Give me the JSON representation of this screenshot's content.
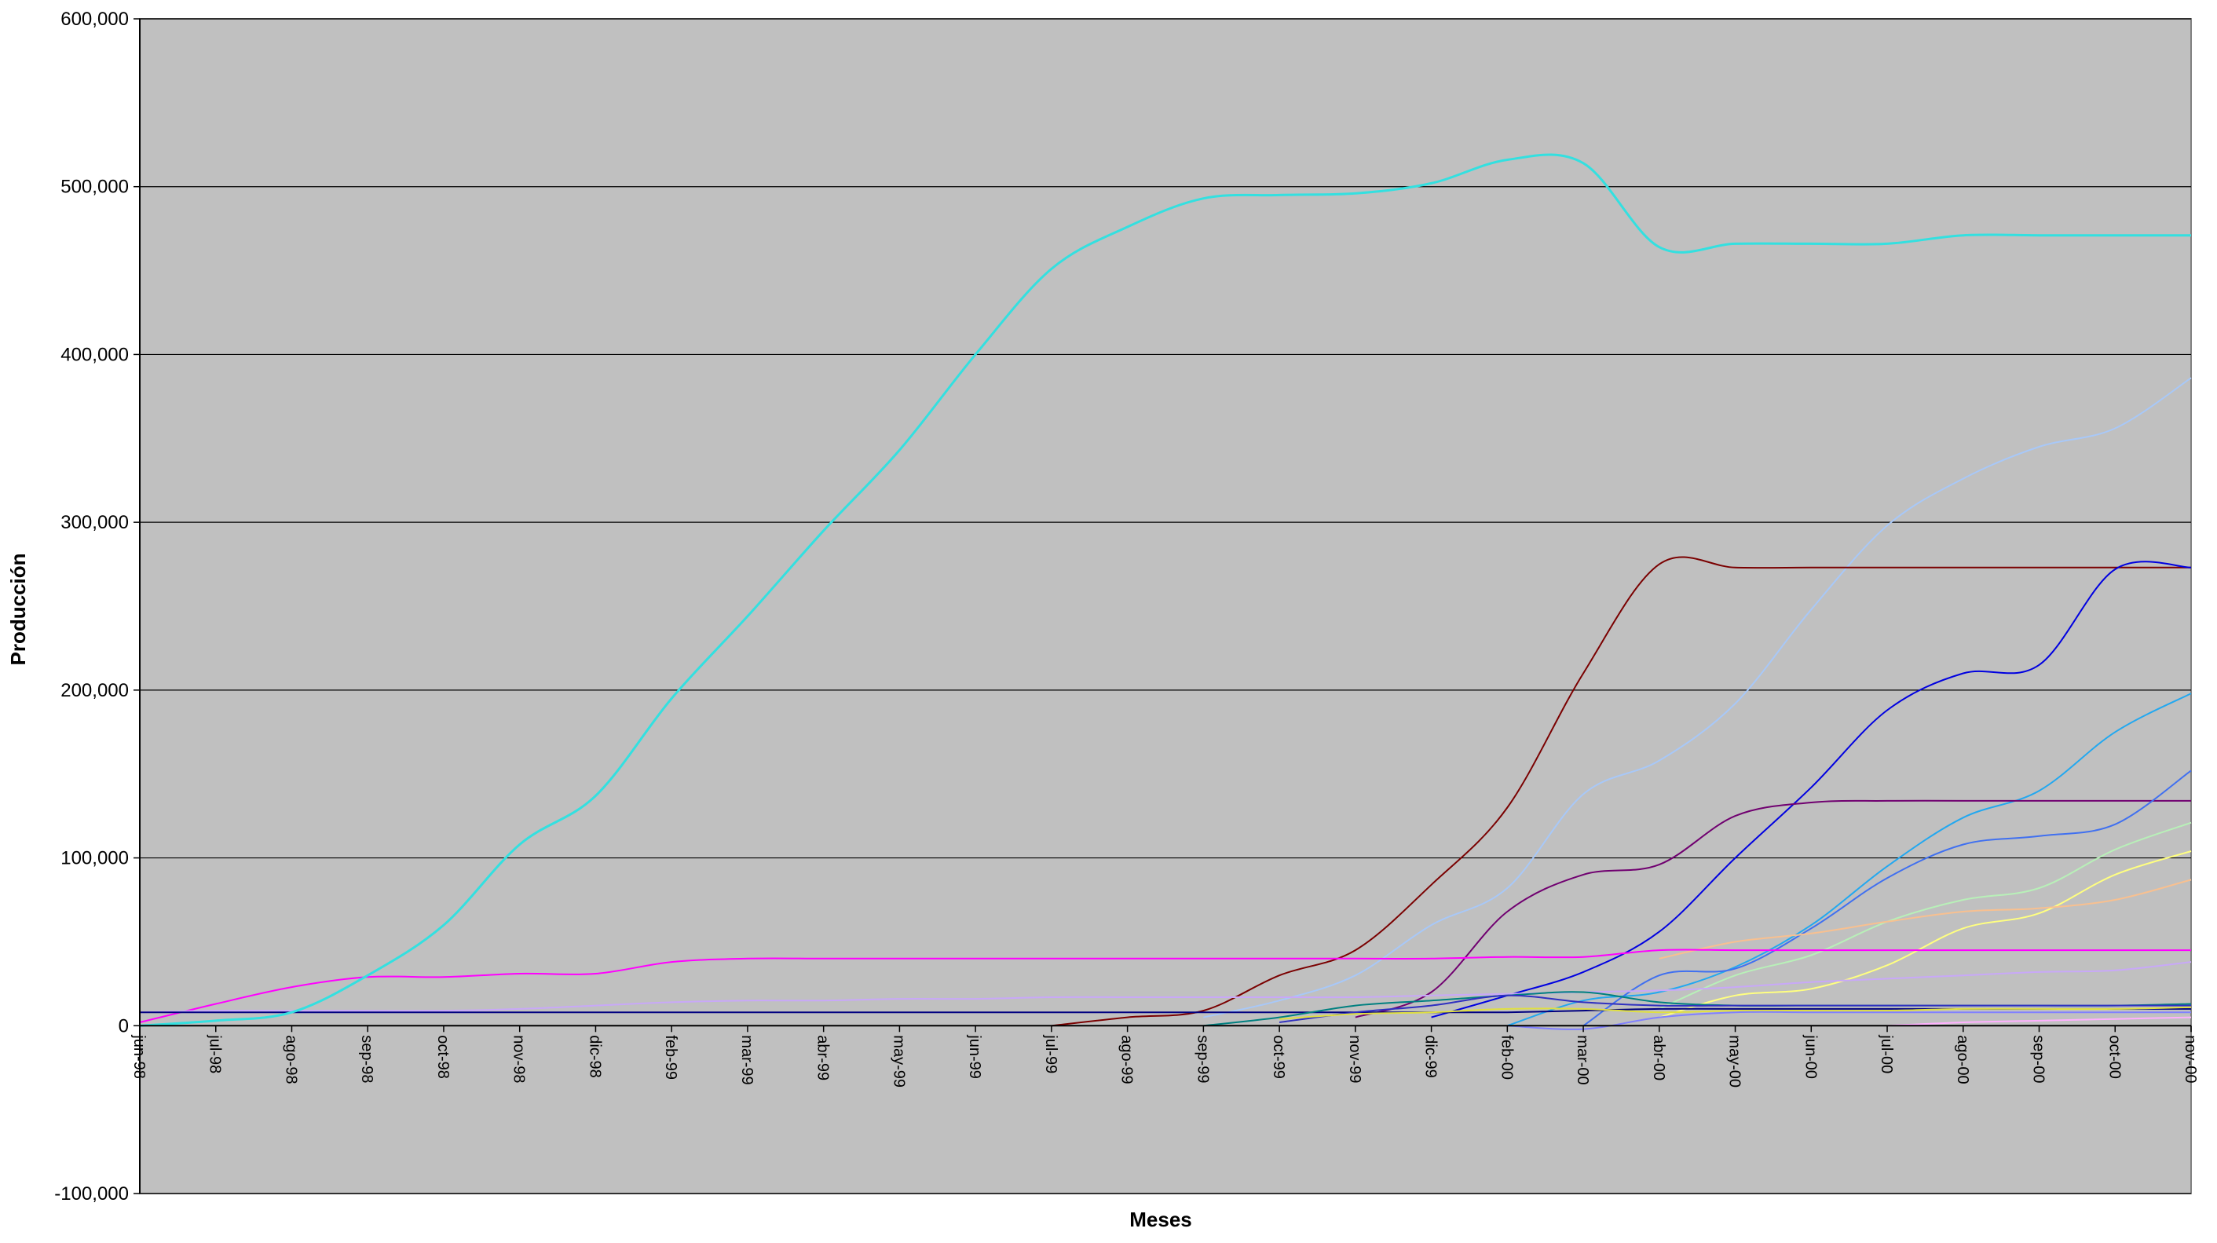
{
  "chart_data": {
    "type": "line",
    "title": "",
    "xlabel": "Meses",
    "ylabel": "Producción",
    "ylim": [
      -100000,
      600000
    ],
    "ytick_step": 100000,
    "grid": "horizontal",
    "background": "#c0c0c0",
    "categories": [
      "jun-98",
      "jul-98",
      "ago-98",
      "sep-98",
      "oct-98",
      "nov-98",
      "dic-98",
      "feb-99",
      "mar-99",
      "abr-99",
      "may-99",
      "jun-99",
      "jul-99",
      "ago-99",
      "sep-99",
      "oct-99",
      "nov-99",
      "dic-99",
      "feb-00",
      "mar-00",
      "abr-00",
      "may-00",
      "jun-00",
      "jul-00",
      "ago-00",
      "sep-00",
      "oct-00",
      "nov-00"
    ],
    "series": [
      {
        "color": "#33e0e0",
        "width": 3,
        "values": [
          0,
          3000,
          8000,
          30000,
          60000,
          108000,
          137000,
          195000,
          244000,
          295000,
          343000,
          400000,
          451000,
          476000,
          493000,
          495000,
          496000,
          502000,
          516000,
          514000,
          464000,
          466000,
          466000,
          466000,
          471000,
          471000,
          471000,
          471000
        ]
      },
      {
        "color": "#a8c8f8",
        "width": 2,
        "values": [
          null,
          null,
          null,
          null,
          null,
          null,
          null,
          null,
          null,
          null,
          null,
          null,
          null,
          null,
          5000,
          15000,
          30000,
          60000,
          82000,
          138000,
          158000,
          192000,
          248000,
          298000,
          326000,
          345000,
          356000,
          386000
        ]
      },
      {
        "color": "#7a0000",
        "width": 2,
        "values": [
          null,
          null,
          null,
          null,
          null,
          null,
          null,
          null,
          null,
          null,
          null,
          null,
          0,
          5000,
          9000,
          30000,
          45000,
          84000,
          130000,
          210000,
          275000,
          273000,
          273000,
          273000,
          273000,
          273000,
          273000,
          273000
        ]
      },
      {
        "color": "#0000e0",
        "width": 2,
        "values": [
          null,
          null,
          null,
          null,
          null,
          null,
          null,
          null,
          null,
          null,
          null,
          null,
          null,
          null,
          null,
          null,
          null,
          5000,
          18000,
          32000,
          56000,
          100000,
          142000,
          188000,
          210000,
          215000,
          272000,
          273000
        ]
      },
      {
        "color": "#22a8f0",
        "width": 2,
        "values": [
          null,
          null,
          null,
          null,
          null,
          null,
          null,
          null,
          null,
          null,
          null,
          null,
          null,
          null,
          null,
          null,
          null,
          null,
          0,
          15000,
          20000,
          35000,
          60000,
          95000,
          124000,
          140000,
          175000,
          198000
        ]
      },
      {
        "color": "#700070",
        "width": 2,
        "values": [
          null,
          null,
          null,
          null,
          null,
          null,
          null,
          null,
          null,
          null,
          null,
          null,
          null,
          null,
          null,
          null,
          5000,
          20000,
          68000,
          90000,
          96000,
          125000,
          133000,
          134000,
          134000,
          134000,
          134000,
          134000
        ]
      },
      {
        "color": "#4070f0",
        "width": 2,
        "values": [
          null,
          null,
          null,
          null,
          null,
          null,
          null,
          null,
          null,
          null,
          null,
          null,
          null,
          null,
          null,
          null,
          null,
          null,
          null,
          0,
          30000,
          34000,
          58000,
          88000,
          108000,
          113000,
          120000,
          152000
        ]
      },
      {
        "color": "#b8f0b8",
        "width": 2,
        "values": [
          null,
          null,
          null,
          null,
          null,
          null,
          null,
          null,
          null,
          null,
          null,
          null,
          null,
          null,
          null,
          null,
          null,
          null,
          null,
          null,
          10000,
          30000,
          42000,
          62000,
          75000,
          82000,
          105000,
          121000
        ]
      },
      {
        "color": "#ffff80",
        "width": 2,
        "values": [
          null,
          null,
          null,
          null,
          null,
          null,
          null,
          null,
          null,
          null,
          null,
          null,
          null,
          null,
          null,
          null,
          null,
          null,
          null,
          null,
          5000,
          18000,
          22000,
          36000,
          58000,
          67000,
          90000,
          104000
        ]
      },
      {
        "color": "#f8c090",
        "width": 2,
        "values": [
          null,
          null,
          null,
          null,
          null,
          null,
          null,
          null,
          null,
          null,
          null,
          null,
          null,
          null,
          null,
          null,
          null,
          null,
          null,
          null,
          40000,
          50000,
          55000,
          62000,
          68000,
          70000,
          75000,
          87000
        ]
      },
      {
        "color": "#ff00ff",
        "width": 2,
        "values": [
          2000,
          13000,
          23000,
          29000,
          29000,
          31000,
          31000,
          38000,
          40000,
          40000,
          40000,
          40000,
          40000,
          40000,
          40000,
          40000,
          40000,
          40000,
          41000,
          41000,
          45000,
          45000,
          45000,
          45000,
          45000,
          45000,
          45000,
          45000
        ]
      },
      {
        "color": "#c8a8f8",
        "width": 2,
        "values": [
          8000,
          9000,
          9000,
          9000,
          9000,
          10000,
          12000,
          14000,
          15000,
          15000,
          16000,
          16000,
          17000,
          17000,
          17000,
          17000,
          17000,
          18000,
          19000,
          20000,
          21000,
          23000,
          26000,
          28000,
          30000,
          32000,
          33000,
          38000
        ]
      },
      {
        "color": "#000080",
        "width": 2,
        "values": [
          8000,
          8000,
          8000,
          8000,
          8000,
          8000,
          8000,
          8000,
          8000,
          8000,
          8000,
          8000,
          8000,
          8000,
          8000,
          8000,
          8000,
          8000,
          8000,
          9000,
          10000,
          10000,
          10000,
          10000,
          10000,
          10000,
          10000,
          10000
        ]
      },
      {
        "color": "#008080",
        "width": 2,
        "values": [
          null,
          null,
          null,
          null,
          null,
          null,
          null,
          null,
          null,
          null,
          null,
          null,
          null,
          null,
          0,
          5000,
          12000,
          15000,
          18000,
          20000,
          14000,
          12000,
          12000,
          12000,
          12000,
          12000,
          12000,
          13000
        ]
      },
      {
        "color": "#3030c0",
        "width": 2,
        "values": [
          null,
          null,
          null,
          null,
          null,
          null,
          null,
          null,
          null,
          null,
          null,
          null,
          null,
          null,
          null,
          2000,
          8000,
          12000,
          18000,
          14000,
          12000,
          12000,
          12000,
          12000,
          12000,
          12000,
          12000,
          12000
        ]
      },
      {
        "color": "#e0e040",
        "width": 2,
        "values": [
          null,
          null,
          null,
          null,
          null,
          null,
          null,
          null,
          null,
          null,
          null,
          null,
          null,
          null,
          null,
          4000,
          7000,
          8000,
          10000,
          10000,
          8000,
          9000,
          9000,
          9000,
          10000,
          10000,
          10000,
          11000
        ]
      },
      {
        "color": "#8080ff",
        "width": 2,
        "values": [
          null,
          null,
          null,
          null,
          null,
          null,
          null,
          null,
          null,
          null,
          null,
          null,
          null,
          null,
          null,
          null,
          null,
          null,
          0,
          -2000,
          5000,
          8000,
          8000,
          8000,
          8000,
          8000,
          8000,
          8000
        ]
      },
      {
        "color": "#ffb0ff",
        "width": 2,
        "values": [
          null,
          null,
          null,
          null,
          null,
          null,
          null,
          null,
          null,
          null,
          null,
          null,
          null,
          null,
          null,
          null,
          null,
          null,
          null,
          null,
          null,
          null,
          null,
          0,
          2000,
          3000,
          4000,
          5000
        ]
      }
    ]
  }
}
